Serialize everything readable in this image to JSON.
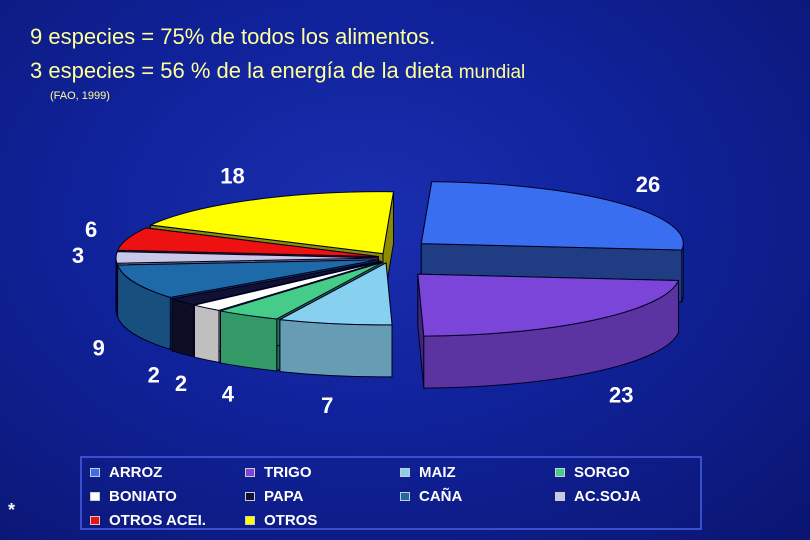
{
  "title": {
    "line1": "9 especies =  75% de todos los alimentos.",
    "line2_main": "3  especies = 56 % de la energía de la dieta  ",
    "line2_tail": "mundial",
    "source": "(FAO, 1999)"
  },
  "footer_mark": "*",
  "chart_data": {
    "type": "pie",
    "title": "",
    "slices": [
      {
        "name": "ARROZ",
        "value": 26,
        "color": "#3a6ef0"
      },
      {
        "name": "TRIGO",
        "value": 23,
        "color": "#7a45d8"
      },
      {
        "name": "MAIZ",
        "value": 7,
        "color": "#88d0f0"
      },
      {
        "name": "SORGO",
        "value": 4,
        "color": "#44cc88"
      },
      {
        "name": "BONIATO",
        "value": 2,
        "color": "#ffffff"
      },
      {
        "name": "PAPA",
        "value": 2,
        "color": "#111133"
      },
      {
        "name": "CAÑA",
        "value": 9,
        "color": "#1e6aa8"
      },
      {
        "name": "AC.SOJA",
        "value": 3,
        "color": "#c8c8e8"
      },
      {
        "name": "OTROS ACEI.",
        "value": 6,
        "color": "#ee1111"
      },
      {
        "name": "OTROS",
        "value": 18,
        "color": "#ffff00"
      }
    ],
    "legend_placement": "bottom"
  },
  "legend": {
    "items": [
      {
        "label": "ARROZ",
        "color": "#3a6ef0"
      },
      {
        "label": "TRIGO",
        "color": "#7a45d8"
      },
      {
        "label": "MAIZ",
        "color": "#88d0f0"
      },
      {
        "label": "SORGO",
        "color": "#44cc88"
      },
      {
        "label": "BONIATO",
        "color": "#ffffff"
      },
      {
        "label": "PAPA",
        "color": "#111133"
      },
      {
        "label": "CAÑA",
        "color": "#1e6aa8"
      },
      {
        "label": "AC.SOJA",
        "color": "#c8c8e8"
      },
      {
        "label": "OTROS ACEI.",
        "color": "#ee1111"
      },
      {
        "label": "OTROS",
        "color": "#ffff00"
      }
    ]
  }
}
